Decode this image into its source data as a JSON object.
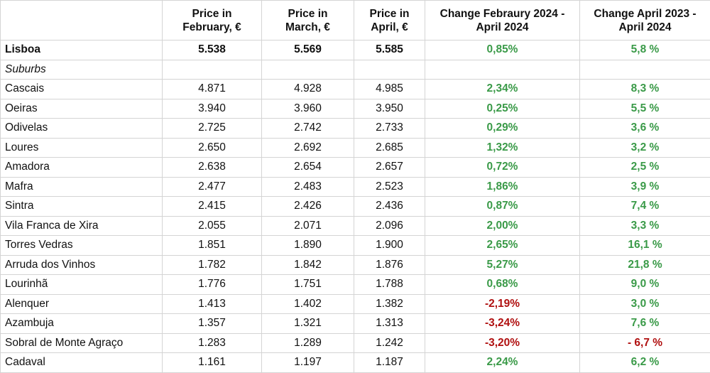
{
  "table": {
    "positive_color": "#3a9a48",
    "negative_color": "#b01010",
    "header": [
      "",
      "Price in\nFebruary, €",
      "Price in\nMarch, €",
      "Price in\nApril, €",
      "Change Febraury 2024 -\nApril 2024",
      "Change April 2023 -\nApril 2024"
    ],
    "rows": [
      {
        "style": "bold",
        "cells": [
          "Lisboa",
          "5.538",
          "5.569",
          "5.585",
          "0,85%",
          "5,8 %"
        ]
      },
      {
        "style": "italic",
        "cells": [
          "Suburbs"
        ]
      },
      {
        "style": "normal",
        "cells": [
          "Cascais",
          "4.871",
          "4.928",
          "4.985",
          "2,34%",
          "8,3 %"
        ]
      },
      {
        "style": "normal",
        "cells": [
          "Oeiras",
          "3.940",
          "3.960",
          "3.950",
          "0,25%",
          "5,5 %"
        ]
      },
      {
        "style": "normal",
        "cells": [
          "Odivelas",
          "2.725",
          "2.742",
          "2.733",
          "0,29%",
          "3,6 %"
        ]
      },
      {
        "style": "normal",
        "cells": [
          "Loures",
          "2.650",
          "2.692",
          "2.685",
          "1,32%",
          "3,2 %"
        ]
      },
      {
        "style": "normal",
        "cells": [
          "Amadora",
          "2.638",
          "2.654",
          "2.657",
          "0,72%",
          "2,5 %"
        ]
      },
      {
        "style": "normal",
        "cells": [
          "Mafra",
          "2.477",
          "2.483",
          "2.523",
          "1,86%",
          "3,9 %"
        ]
      },
      {
        "style": "normal",
        "cells": [
          "Sintra",
          "2.415",
          "2.426",
          "2.436",
          "0,87%",
          "7,4 %"
        ]
      },
      {
        "style": "normal",
        "cells": [
          "Vila Franca de Xira",
          "2.055",
          "2.071",
          "2.096",
          "2,00%",
          "3,3 %"
        ]
      },
      {
        "style": "normal",
        "cells": [
          "Torres Vedras",
          "1.851",
          "1.890",
          "1.900",
          "2,65%",
          "16,1 %"
        ]
      },
      {
        "style": "normal",
        "cells": [
          "Arruda dos Vinhos",
          "1.782",
          "1.842",
          "1.876",
          "5,27%",
          "21,8 %"
        ]
      },
      {
        "style": "normal",
        "cells": [
          "Lourinhã",
          "1.776",
          "1.751",
          "1.788",
          "0,68%",
          "9,0 %"
        ]
      },
      {
        "style": "normal",
        "cells": [
          "Alenquer",
          "1.413",
          "1.402",
          "1.382",
          "-2,19%",
          "3,0 %"
        ]
      },
      {
        "style": "normal",
        "cells": [
          "Azambuja",
          "1.357",
          "1.321",
          "1.313",
          "-3,24%",
          "7,6 %"
        ]
      },
      {
        "style": "normal",
        "cells": [
          "Sobral de Monte Agraço",
          "1.283",
          "1.289",
          "1.242",
          "-3,20%",
          "- 6,7 %"
        ]
      },
      {
        "style": "normal",
        "cells": [
          "Cadaval",
          "1.161",
          "1.197",
          "1.187",
          "2,24%",
          "6,2 %"
        ]
      }
    ]
  }
}
